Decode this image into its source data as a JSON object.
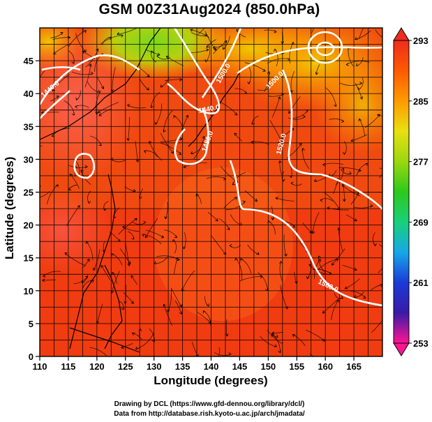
{
  "title": "GSM 00Z31Aug2024 (850.0hPa)",
  "axes": {
    "xlabel": "Longitude (degrees)",
    "ylabel": "Latitude  (degrees)",
    "xticks": [
      "110",
      "115",
      "120",
      "125",
      "130",
      "135",
      "140",
      "145",
      "150",
      "155",
      "160",
      "165"
    ],
    "yticks": [
      "0",
      "5",
      "10",
      "15",
      "20",
      "25",
      "30",
      "35",
      "40",
      "45"
    ],
    "xlim": [
      110,
      170
    ],
    "ylim": [
      0,
      50
    ]
  },
  "colorbar": {
    "labels": [
      "293",
      "285",
      "277",
      "269",
      "261",
      "253"
    ],
    "range": [
      253,
      293
    ],
    "colors": [
      "#ff1493",
      "#3a1aa8",
      "#1a3ad6",
      "#16a8e8",
      "#19d07a",
      "#2ec81c",
      "#9ad810",
      "#e8e010",
      "#ff9a00",
      "#ff5a00",
      "#ef2c1c"
    ]
  },
  "contours": [
    {
      "label": "1440.0"
    },
    {
      "label": "1440.0"
    },
    {
      "label": "1480.0"
    },
    {
      "label": "1500.0"
    },
    {
      "label": "1500.0"
    },
    {
      "label": "1520.0"
    },
    {
      "label": "1560.0"
    }
  ],
  "credits": {
    "line1": "Drawing by DCL (https://www.gfd-dennou.org/library/dcl/)",
    "line2": "Data from http://database.rish.kyoto-u.ac.jp/arch/jmadata/"
  }
}
